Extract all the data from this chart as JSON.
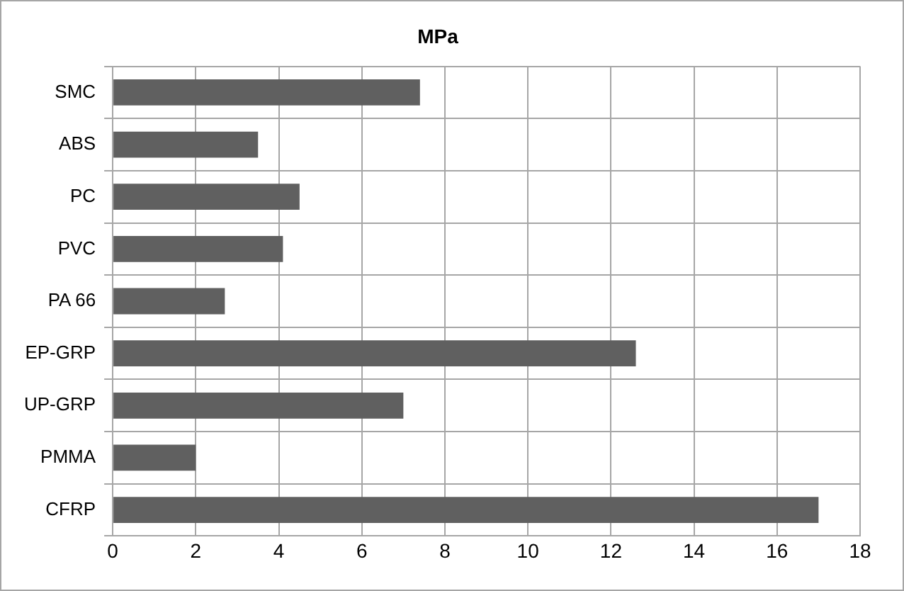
{
  "chart_data": {
    "type": "bar",
    "orientation": "horizontal",
    "title": "MPa",
    "categories": [
      "SMC",
      "ABS",
      "PC",
      "PVC",
      "PA 66",
      "EP-GRP",
      "UP-GRP",
      "PMMA",
      "CFRP"
    ],
    "values": [
      7.4,
      3.5,
      4.5,
      4.1,
      2.7,
      12.6,
      7.0,
      2.0,
      17.0
    ],
    "color": "#606060",
    "xlim": [
      0,
      18
    ],
    "xticks": [
      0,
      2,
      4,
      6,
      8,
      10,
      12,
      14,
      16,
      18
    ],
    "grid": true
  }
}
